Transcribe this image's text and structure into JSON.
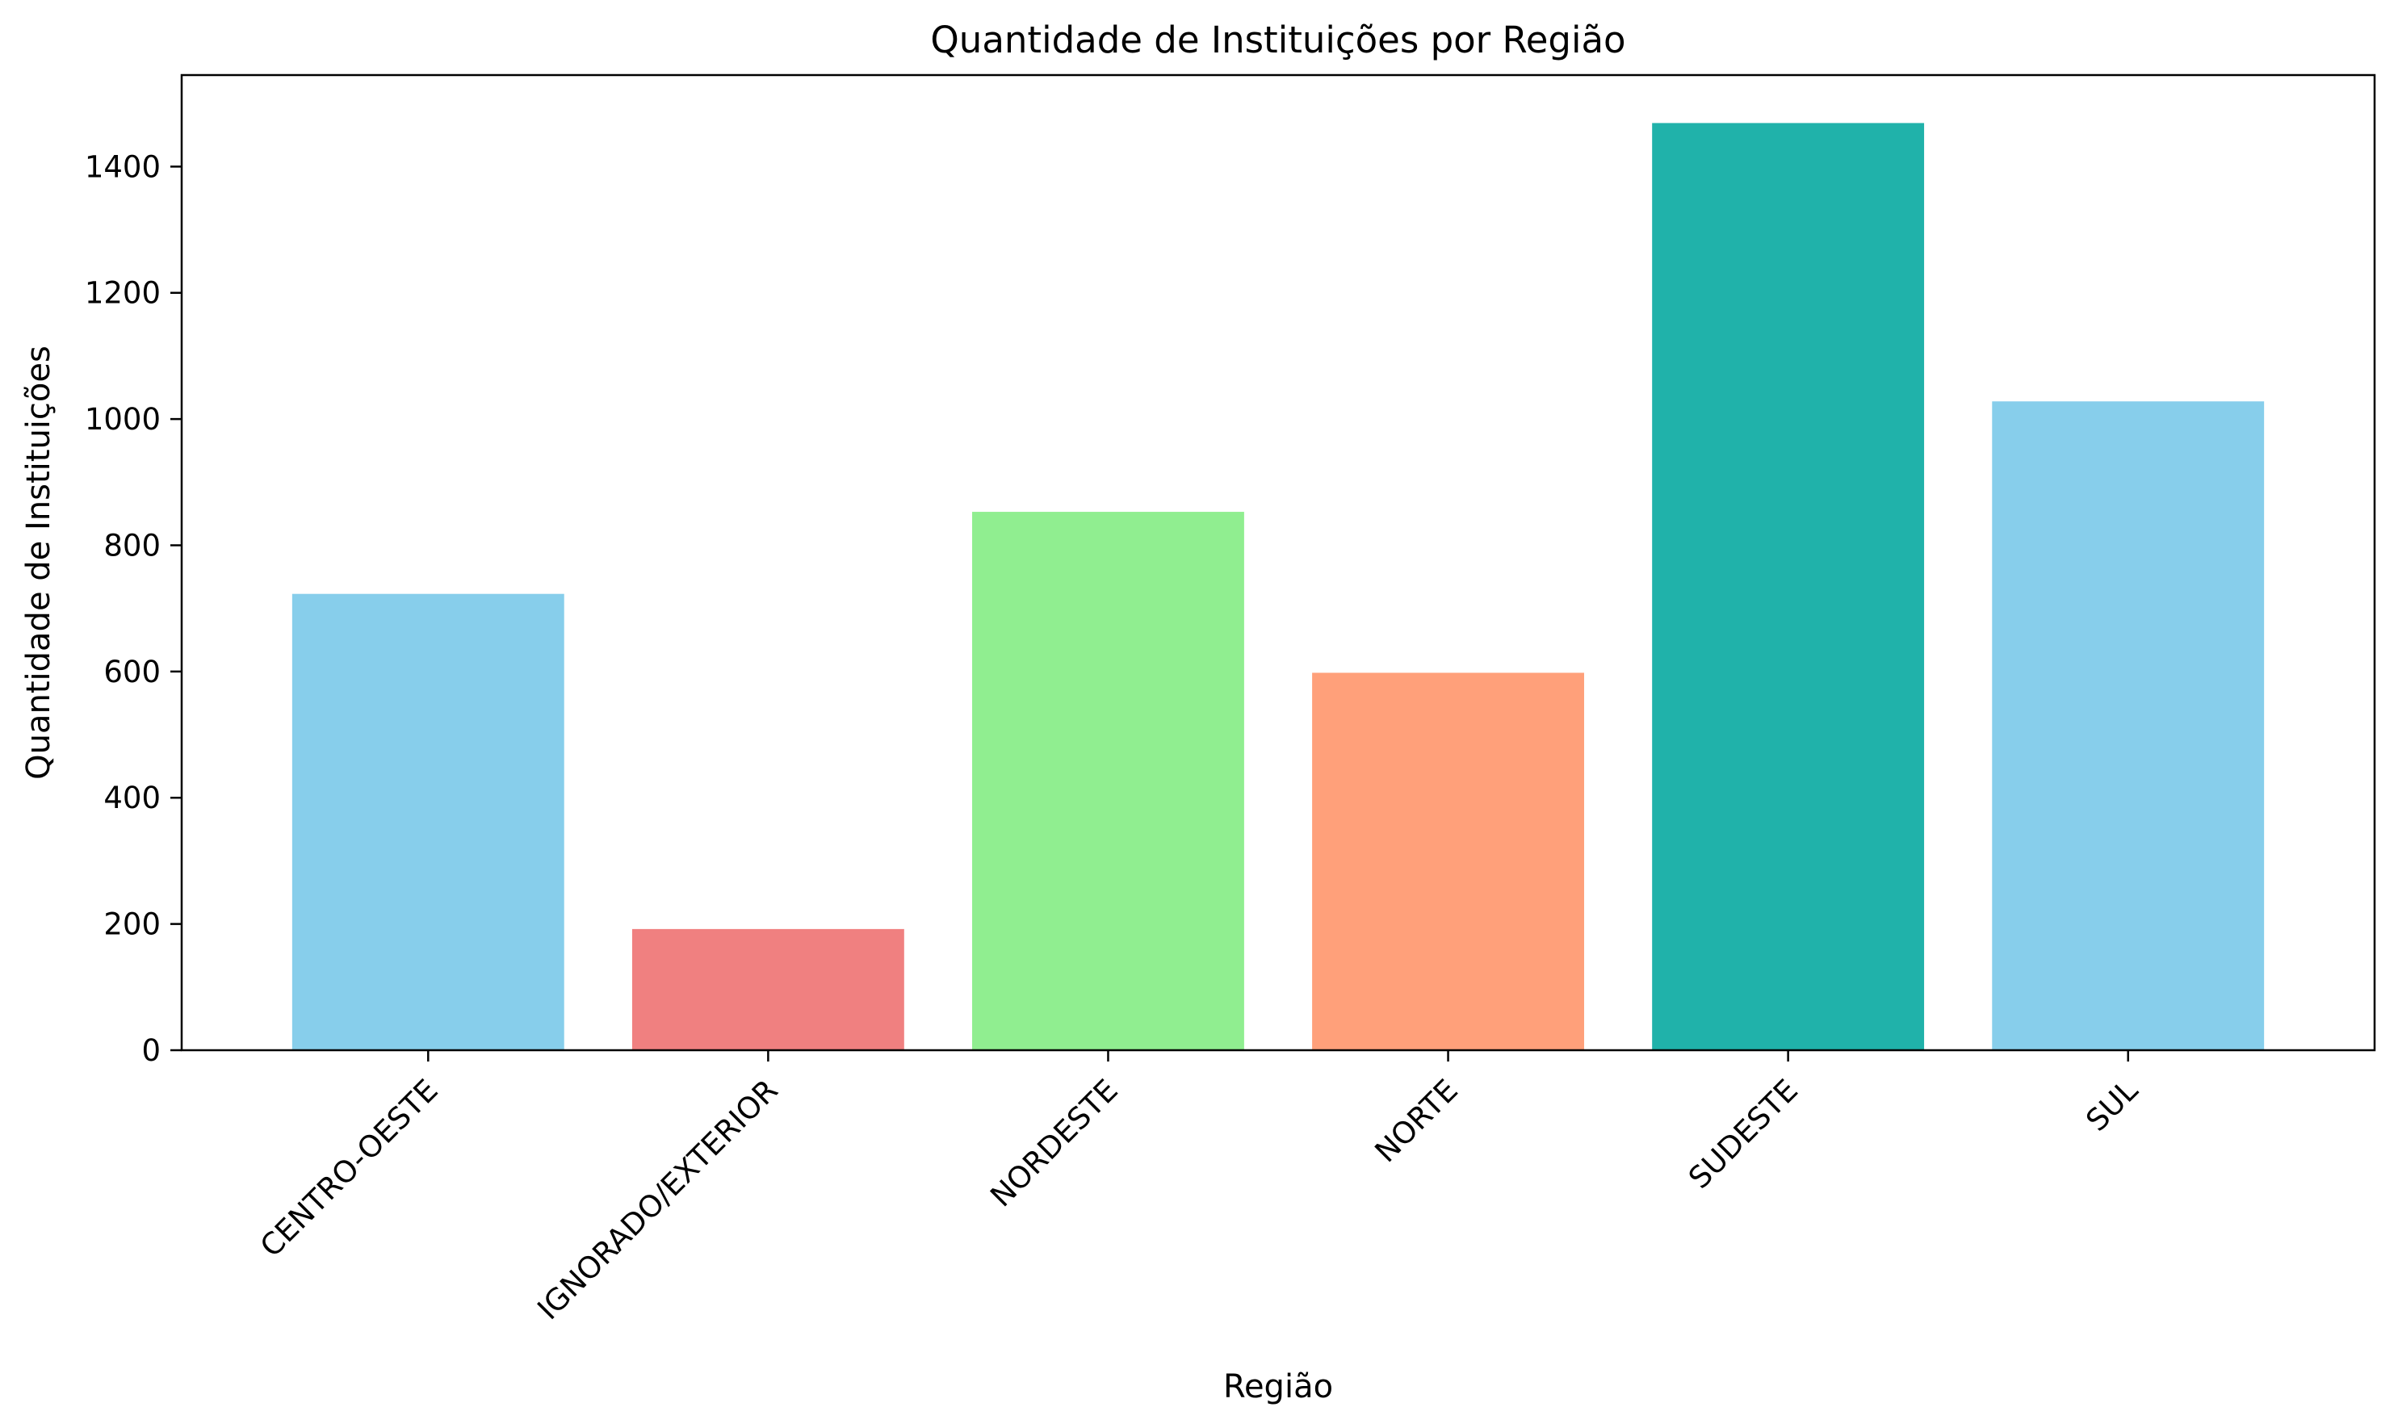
{
  "chart_data": {
    "type": "bar",
    "title": "Quantidade de Instituições por Região",
    "xlabel": "Região",
    "ylabel": "Quantidade de Instituições",
    "categories": [
      "CENTRO-OESTE",
      "IGNORADO/EXTERIOR",
      "NORDESTE",
      "NORTE",
      "SUDESTE",
      "SUL"
    ],
    "values": [
      723,
      192,
      853,
      598,
      1469,
      1028
    ],
    "colors": [
      "#87ceeb",
      "#f08080",
      "#90ee90",
      "#ffa07a",
      "#20b2aa",
      "#87ceeb"
    ],
    "ylim": [
      0,
      1545
    ],
    "yticks": [
      0,
      200,
      400,
      600,
      800,
      1000,
      1200,
      1400
    ],
    "grid": false,
    "legend": "none"
  }
}
